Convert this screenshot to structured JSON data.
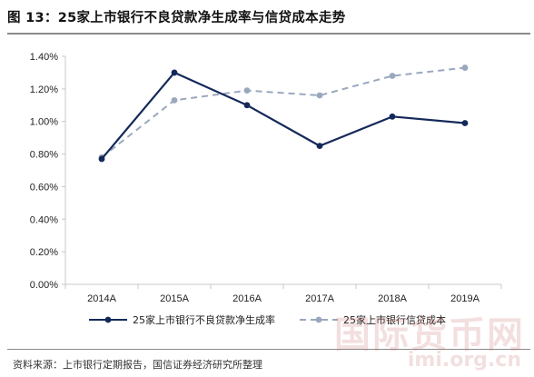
{
  "header": {
    "title": "图 13：25家上市银行不良贷款净生成率与信贷成本走势"
  },
  "footer": {
    "source": "资料来源：上市银行定期报告，国信证券经济研究所整理"
  },
  "watermark": {
    "main": "国际货币网",
    "sub": "imi.org.cn"
  },
  "colors": {
    "series_1": "#14295a",
    "series_2": "#9aa8bd",
    "axis": "#c8c8c8"
  },
  "chart_data": {
    "type": "line",
    "title": "",
    "xlabel": "",
    "ylabel": "",
    "categories": [
      "2014A",
      "2015A",
      "2016A",
      "2017A",
      "2018A",
      "2019A"
    ],
    "y_ticks": [
      "0.00%",
      "0.20%",
      "0.40%",
      "0.60%",
      "0.80%",
      "1.00%",
      "1.20%",
      "1.40%"
    ],
    "ylim": [
      0,
      1.4
    ],
    "grid": false,
    "legend_position": "bottom",
    "series": [
      {
        "name": "25家上市银行不良贷款净生成率",
        "style": "solid",
        "marker": "circle",
        "color": "#14295a",
        "values": [
          0.77,
          1.3,
          1.1,
          0.85,
          1.03,
          0.99
        ]
      },
      {
        "name": "25家上市银行信贷成本",
        "style": "dashed",
        "marker": "circle",
        "color": "#9aa8bd",
        "values": [
          0.78,
          1.13,
          1.19,
          1.16,
          1.28,
          1.33
        ]
      }
    ]
  }
}
